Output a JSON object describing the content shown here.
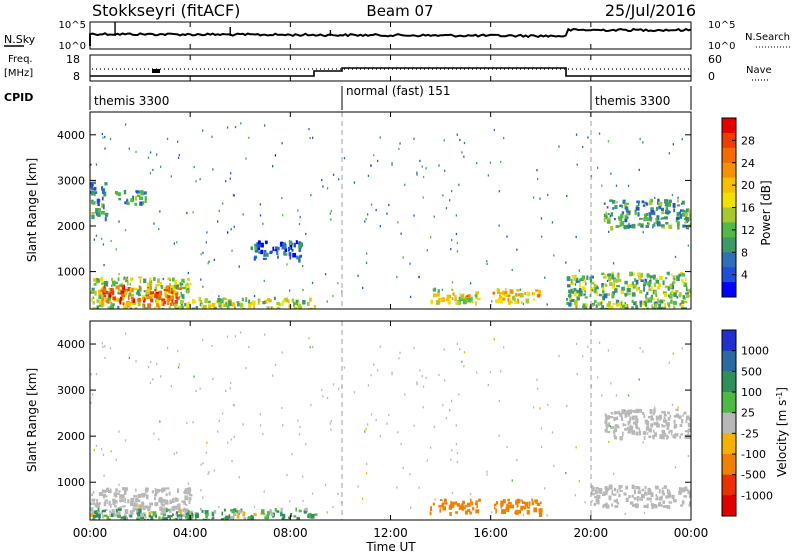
{
  "header": {
    "station": "Stokkseyri (fitACF)",
    "beam": "Beam 07",
    "date": "25/Jul/2016"
  },
  "panels": {
    "nsky": {
      "left_label": "N.Sky",
      "ticks": [
        "10^5",
        "10^0"
      ],
      "right_ticks": [
        "10^5",
        "10^0"
      ],
      "right_label": "N.Search"
    },
    "freq": {
      "label_line1": "Freq.",
      "label_line2": "[MHz]",
      "ticks": [
        "18",
        "8"
      ],
      "right_ticks": [
        "60",
        "0"
      ],
      "right_label": "Nave"
    },
    "cpid": {
      "label": "CPID",
      "segments": [
        "themis 3300",
        "normal (fast) 151",
        "themis 3300"
      ]
    }
  },
  "x_axis": {
    "title": "Time UT",
    "ticks": [
      "00:00",
      "04:00",
      "08:00",
      "12:00",
      "16:00",
      "20:00",
      "00:00"
    ]
  },
  "power_panel": {
    "ylabel": "Slant Range [km]",
    "yticks": [
      "1000",
      "2000",
      "3000",
      "4000"
    ],
    "colorbar_label": "Power [dB]",
    "colorbar_ticks": [
      "4",
      "8",
      "12",
      "16",
      "20",
      "24",
      "28"
    ],
    "colors": [
      "#0000ff",
      "#1e4fd8",
      "#2d6fb8",
      "#3c9a6a",
      "#52b846",
      "#a8c830",
      "#f0e000",
      "#f6c000",
      "#f59000",
      "#f26a00",
      "#ee3c00",
      "#e60000"
    ]
  },
  "velocity_panel": {
    "ylabel": "Slant Range [km]",
    "yticks": [
      "1000",
      "2000",
      "3000",
      "4000"
    ],
    "colorbar_label": "Velocity [m s^-1]",
    "colorbar_ticks": [
      "1000",
      "500",
      "100",
      "25",
      "-25",
      "-100",
      "-500",
      "-1000"
    ],
    "colors": [
      "#1f2fd0",
      "#2a6aa0",
      "#2f8f5a",
      "#4db842",
      "#b8b8b8",
      "#f5b000",
      "#f08000",
      "#e83000",
      "#e00000"
    ]
  },
  "chart_data": {
    "type": "heatmap",
    "title": "Stokkseyri (fitACF) Beam 07 25/Jul/2016",
    "xlabel": "Time UT",
    "ylabel": "Slant Range [km]",
    "xlim": [
      0,
      24
    ],
    "ylim": [
      180,
      4500
    ],
    "series": [
      {
        "name": "Power [dB]",
        "regions": [
          {
            "t": [
              0,
              4
            ],
            "r": [
              200,
              900
            ],
            "value": 14
          },
          {
            "t": [
              0.4,
              3.6
            ],
            "r": [
              300,
              700
            ],
            "value": 24
          },
          {
            "t": [
              4,
              9
            ],
            "r": [
              200,
              450
            ],
            "value": 14
          },
          {
            "t": [
              0,
              0.6
            ],
            "r": [
              2200,
              3000
            ],
            "value": 8
          },
          {
            "t": [
              1,
              2.2
            ],
            "r": [
              2500,
              2800
            ],
            "value": 8
          },
          {
            "t": [
              6.4,
              8.4
            ],
            "r": [
              1300,
              1700
            ],
            "value": 6
          },
          {
            "t": [
              13.5,
              15.5
            ],
            "r": [
              350,
              650
            ],
            "value": 16
          },
          {
            "t": [
              16,
              18
            ],
            "r": [
              350,
              650
            ],
            "value": 18
          },
          {
            "t": [
              19,
              24
            ],
            "r": [
              200,
              1000
            ],
            "value": 12
          },
          {
            "t": [
              20.5,
              24
            ],
            "r": [
              2000,
              2600
            ],
            "value": 10
          }
        ]
      },
      {
        "name": "Velocity [m s^-1]",
        "regions": [
          {
            "t": [
              0,
              4
            ],
            "r": [
              300,
              900
            ],
            "value": 0
          },
          {
            "t": [
              0,
              9
            ],
            "r": [
              200,
              450
            ],
            "value": 100
          },
          {
            "t": [
              13.5,
              15.5
            ],
            "r": [
              350,
              650
            ],
            "value": -300
          },
          {
            "t": [
              16,
              18
            ],
            "r": [
              350,
              650
            ],
            "value": -300
          },
          {
            "t": [
              20,
              24
            ],
            "r": [
              500,
              950
            ],
            "value": 0
          },
          {
            "t": [
              20.5,
              24
            ],
            "r": [
              2000,
              2600
            ],
            "value": 0
          }
        ]
      }
    ]
  }
}
